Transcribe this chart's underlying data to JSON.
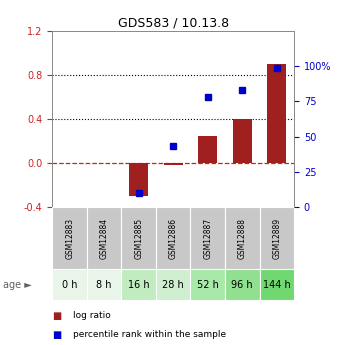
{
  "title": "GDS583 / 10.13.8",
  "samples": [
    "GSM12883",
    "GSM12884",
    "GSM12885",
    "GSM12886",
    "GSM12887",
    "GSM12888",
    "GSM12889"
  ],
  "ages": [
    "0 h",
    "8 h",
    "16 h",
    "28 h",
    "52 h",
    "96 h",
    "144 h"
  ],
  "log_ratio": [
    0.0,
    0.0,
    -0.3,
    -0.02,
    0.25,
    0.4,
    0.9
  ],
  "percentile_rank": [
    null,
    null,
    10.0,
    43.0,
    78.0,
    83.0,
    99.0
  ],
  "ylim_left": [
    -0.4,
    1.2
  ],
  "ylim_right": [
    0,
    125
  ],
  "yticks_left": [
    -0.4,
    0.0,
    0.4,
    0.8,
    1.2
  ],
  "yticks_right": [
    0,
    25,
    50,
    75,
    100
  ],
  "ytick_labels_right": [
    "0",
    "25",
    "50",
    "75",
    "100%"
  ],
  "hlines": [
    0.4,
    0.8
  ],
  "bar_color": "#a02020",
  "dot_color": "#0000cc",
  "zero_line_color": "#cc2222",
  "age_bg_colors": [
    "#e8f5e8",
    "#e8f5e8",
    "#c0ecc0",
    "#d0eed0",
    "#a8e8a8",
    "#90e090",
    "#70d870"
  ],
  "sample_bg_color": "#c8c8c8",
  "bar_width": 0.55,
  "legend_items": [
    {
      "color": "#a02020",
      "label": "log ratio"
    },
    {
      "color": "#0000cc",
      "label": "percentile rank within the sample"
    }
  ]
}
